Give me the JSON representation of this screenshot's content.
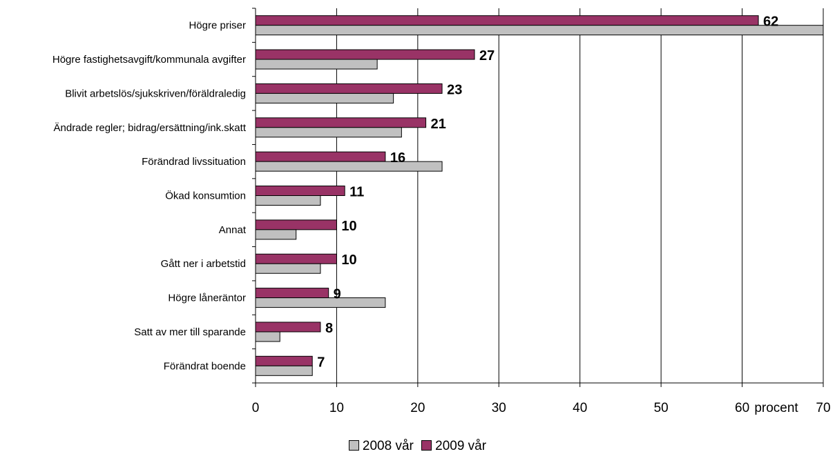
{
  "chart_data": {
    "type": "bar",
    "orientation": "horizontal",
    "categories": [
      "Högre priser",
      "Högre fastighetsavgift/kommunala avgifter",
      "Blivit arbetslös/sjukskriven/föräldraledig",
      "Ändrade regler; bidrag/ersättning/ink.skatt",
      "Förändrad livssituation",
      "Ökad konsumtion",
      "Annat",
      "Gått ner i arbetstid",
      "Högre låneräntor",
      "Satt av mer till sparande",
      "Förändrat boende"
    ],
    "series": [
      {
        "name": "2009 vår",
        "color": "#993366",
        "values": [
          62,
          27,
          23,
          21,
          16,
          11,
          10,
          10,
          9,
          8,
          7
        ],
        "labels": [
          "62",
          "27",
          "23",
          "21",
          "16",
          "11",
          "10",
          "10",
          "9",
          "8",
          "7"
        ]
      },
      {
        "name": "2008 vår",
        "color": "#c0c0c0",
        "values": [
          70,
          15,
          17,
          18,
          23,
          8,
          5,
          8,
          16,
          3,
          7
        ]
      }
    ],
    "xlim": [
      0,
      70
    ],
    "xticks": [
      0,
      10,
      20,
      30,
      40,
      50,
      60,
      70
    ],
    "xlabel": "procent",
    "grid": true,
    "legend_placement": "bottom-center",
    "legend_order": [
      "2008 vår",
      "2009 vår"
    ]
  }
}
